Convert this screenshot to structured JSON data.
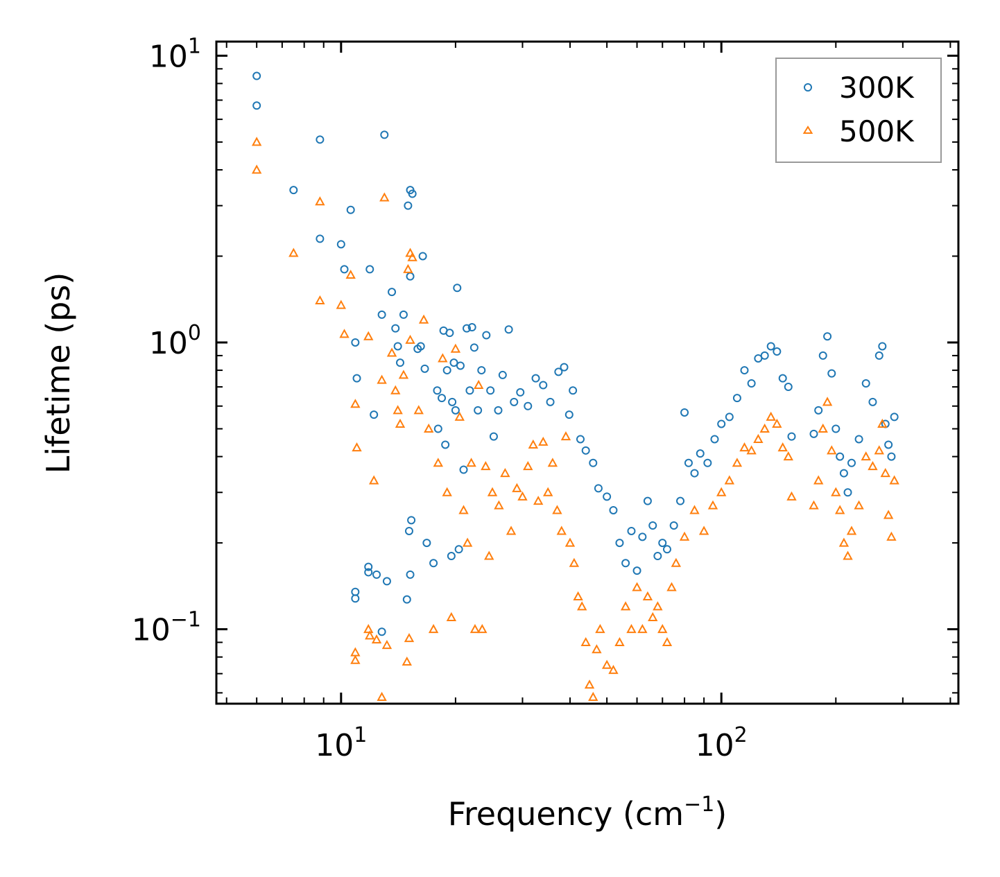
{
  "chart_data": {
    "type": "scatter",
    "title": "",
    "xlabel": {
      "text": "Frequency (cm",
      "sup": "−1",
      "suffix": ")"
    },
    "ylabel": "Lifetime (ps)",
    "xscale": "log",
    "yscale": "log",
    "xlim": [
      4.7,
      420
    ],
    "ylim": [
      0.055,
      11.2
    ],
    "grid": false,
    "legend_position": "top-right",
    "x_ticks": [
      {
        "value": 10,
        "base": "10",
        "exp": "1"
      },
      {
        "value": 100,
        "base": "10",
        "exp": "2"
      }
    ],
    "y_ticks": [
      {
        "value": 0.1,
        "base": "10",
        "exp": "−1"
      },
      {
        "value": 1,
        "base": "10",
        "exp": "0"
      },
      {
        "value": 10,
        "base": "10",
        "exp": "1"
      }
    ],
    "series": [
      {
        "name": "300K",
        "marker": "circle",
        "color": "#1f77b4",
        "points": [
          [
            6.0,
            8.5
          ],
          [
            6.0,
            6.7
          ],
          [
            7.5,
            3.4
          ],
          [
            8.8,
            5.1
          ],
          [
            8.8,
            2.3
          ],
          [
            10.0,
            2.2
          ],
          [
            10.2,
            1.8
          ],
          [
            10.6,
            2.9
          ],
          [
            10.9,
            1.0
          ],
          [
            11.0,
            0.75
          ],
          [
            10.9,
            0.135
          ],
          [
            10.9,
            0.128
          ],
          [
            11.9,
            1.8
          ],
          [
            12.2,
            0.56
          ],
          [
            11.8,
            0.165
          ],
          [
            11.8,
            0.158
          ],
          [
            12.4,
            0.155
          ],
          [
            12.8,
            1.25
          ],
          [
            12.8,
            0.098
          ],
          [
            13.0,
            5.3
          ],
          [
            13.2,
            0.147
          ],
          [
            13.6,
            1.5
          ],
          [
            13.9,
            1.12
          ],
          [
            14.1,
            0.97
          ],
          [
            14.3,
            0.85
          ],
          [
            14.6,
            1.25
          ],
          [
            14.9,
            0.127
          ],
          [
            15.0,
            3.0
          ],
          [
            15.2,
            3.4
          ],
          [
            15.4,
            3.3
          ],
          [
            15.2,
            1.7
          ],
          [
            15.1,
            0.22
          ],
          [
            15.2,
            0.155
          ],
          [
            15.3,
            0.24
          ],
          [
            15.9,
            0.95
          ],
          [
            16.2,
            0.97
          ],
          [
            16.4,
            2.0
          ],
          [
            16.6,
            0.81
          ],
          [
            16.8,
            0.2
          ],
          [
            17.5,
            0.17
          ],
          [
            17.9,
            0.68
          ],
          [
            18.0,
            0.5
          ],
          [
            18.4,
            0.64
          ],
          [
            18.6,
            1.1
          ],
          [
            18.8,
            0.44
          ],
          [
            19.0,
            0.8
          ],
          [
            19.3,
            1.08
          ],
          [
            19.6,
            0.62
          ],
          [
            19.5,
            0.18
          ],
          [
            19.8,
            0.85
          ],
          [
            20.0,
            0.58
          ],
          [
            20.2,
            1.55
          ],
          [
            20.4,
            0.19
          ],
          [
            20.6,
            0.83
          ],
          [
            21.0,
            0.36
          ],
          [
            21.4,
            1.12
          ],
          [
            21.8,
            0.68
          ],
          [
            22.1,
            1.13
          ],
          [
            22.4,
            0.96
          ],
          [
            22.9,
            0.58
          ],
          [
            23.4,
            0.8
          ],
          [
            24.1,
            1.06
          ],
          [
            24.7,
            0.68
          ],
          [
            25.2,
            0.47
          ],
          [
            25.9,
            0.58
          ],
          [
            26.6,
            0.77
          ],
          [
            27.6,
            1.11
          ],
          [
            28.5,
            0.62
          ],
          [
            29.6,
            0.67
          ],
          [
            31.0,
            0.6
          ],
          [
            32.5,
            0.75
          ],
          [
            34.0,
            0.71
          ],
          [
            35.5,
            0.62
          ],
          [
            37.3,
            0.79
          ],
          [
            38.6,
            0.82
          ],
          [
            39.8,
            0.56
          ],
          [
            40.7,
            0.68
          ],
          [
            42.6,
            0.46
          ],
          [
            44.0,
            0.42
          ],
          [
            46.0,
            0.38
          ],
          [
            47.5,
            0.31
          ],
          [
            50.0,
            0.29
          ],
          [
            52.0,
            0.26
          ],
          [
            54.0,
            0.2
          ],
          [
            56.0,
            0.17
          ],
          [
            58.0,
            0.22
          ],
          [
            60.0,
            0.16
          ],
          [
            62.0,
            0.21
          ],
          [
            64.0,
            0.28
          ],
          [
            66.0,
            0.23
          ],
          [
            68.0,
            0.18
          ],
          [
            70.0,
            0.2
          ],
          [
            72.0,
            0.19
          ],
          [
            75.0,
            0.23
          ],
          [
            78.0,
            0.28
          ],
          [
            80.0,
            0.57
          ],
          [
            82.0,
            0.38
          ],
          [
            85.0,
            0.35
          ],
          [
            88.0,
            0.41
          ],
          [
            92.0,
            0.38
          ],
          [
            96.0,
            0.46
          ],
          [
            100.0,
            0.52
          ],
          [
            105.0,
            0.55
          ],
          [
            110.0,
            0.64
          ],
          [
            115.0,
            0.8
          ],
          [
            120.0,
            0.72
          ],
          [
            125.0,
            0.88
          ],
          [
            130.0,
            0.9
          ],
          [
            135.0,
            0.97
          ],
          [
            140.0,
            0.93
          ],
          [
            145.0,
            0.75
          ],
          [
            150.0,
            0.7
          ],
          [
            153.0,
            0.47
          ],
          [
            175.0,
            0.48
          ],
          [
            180.0,
            0.58
          ],
          [
            185.0,
            0.9
          ],
          [
            190.0,
            1.05
          ],
          [
            195.0,
            0.78
          ],
          [
            200.0,
            0.5
          ],
          [
            205.0,
            0.4
          ],
          [
            210.0,
            0.35
          ],
          [
            215.0,
            0.3
          ],
          [
            220.0,
            0.38
          ],
          [
            230.0,
            0.46
          ],
          [
            240.0,
            0.72
          ],
          [
            250.0,
            0.62
          ],
          [
            260.0,
            0.9
          ],
          [
            265.0,
            0.97
          ],
          [
            270.0,
            0.52
          ],
          [
            275.0,
            0.44
          ],
          [
            280.0,
            0.4
          ],
          [
            285.0,
            0.55
          ]
        ]
      },
      {
        "name": "500K",
        "marker": "triangle",
        "color": "#ff7f0e",
        "points": [
          [
            6.0,
            5.0
          ],
          [
            6.0,
            4.0
          ],
          [
            7.5,
            2.05
          ],
          [
            8.8,
            3.1
          ],
          [
            8.8,
            1.4
          ],
          [
            10.0,
            1.35
          ],
          [
            10.2,
            1.07
          ],
          [
            10.6,
            1.72
          ],
          [
            10.9,
            0.61
          ],
          [
            11.0,
            0.43
          ],
          [
            10.9,
            0.083
          ],
          [
            10.9,
            0.078
          ],
          [
            11.8,
            1.05
          ],
          [
            11.8,
            0.1
          ],
          [
            11.9,
            0.095
          ],
          [
            12.2,
            0.33
          ],
          [
            12.4,
            0.092
          ],
          [
            12.8,
            0.74
          ],
          [
            12.8,
            0.058
          ],
          [
            13.0,
            3.2
          ],
          [
            13.2,
            0.088
          ],
          [
            13.6,
            0.92
          ],
          [
            13.9,
            0.68
          ],
          [
            14.1,
            0.58
          ],
          [
            14.3,
            0.52
          ],
          [
            14.6,
            0.77
          ],
          [
            14.9,
            0.077
          ],
          [
            15.0,
            1.8
          ],
          [
            15.2,
            2.05
          ],
          [
            15.4,
            1.98
          ],
          [
            15.2,
            1.02
          ],
          [
            15.1,
            0.093
          ],
          [
            16.0,
            0.58
          ],
          [
            16.5,
            1.2
          ],
          [
            17.0,
            0.5
          ],
          [
            17.5,
            0.1
          ],
          [
            18.0,
            0.38
          ],
          [
            18.5,
            0.88
          ],
          [
            19.0,
            0.3
          ],
          [
            19.5,
            0.11
          ],
          [
            20.0,
            0.95
          ],
          [
            20.5,
            0.55
          ],
          [
            21.0,
            0.26
          ],
          [
            21.5,
            0.2
          ],
          [
            22.0,
            0.38
          ],
          [
            22.5,
            0.1
          ],
          [
            23.0,
            0.71
          ],
          [
            23.5,
            0.1
          ],
          [
            24.0,
            0.37
          ],
          [
            24.5,
            0.18
          ],
          [
            25.0,
            0.3
          ],
          [
            26.0,
            0.27
          ],
          [
            27.0,
            0.35
          ],
          [
            28.0,
            0.22
          ],
          [
            29.0,
            0.31
          ],
          [
            30.0,
            0.29
          ],
          [
            31.0,
            0.37
          ],
          [
            32.0,
            0.44
          ],
          [
            33.0,
            0.28
          ],
          [
            34.0,
            0.45
          ],
          [
            35.0,
            0.3
          ],
          [
            36.0,
            0.38
          ],
          [
            37.0,
            0.26
          ],
          [
            38.0,
            0.22
          ],
          [
            39.0,
            0.47
          ],
          [
            40.0,
            0.2
          ],
          [
            41.0,
            0.17
          ],
          [
            42.0,
            0.13
          ],
          [
            43.0,
            0.12
          ],
          [
            44.0,
            0.09
          ],
          [
            45.0,
            0.064
          ],
          [
            46.0,
            0.058
          ],
          [
            47.0,
            0.085
          ],
          [
            48.0,
            0.1
          ],
          [
            50.0,
            0.075
          ],
          [
            52.0,
            0.072
          ],
          [
            54.0,
            0.09
          ],
          [
            56.0,
            0.12
          ],
          [
            58.0,
            0.1
          ],
          [
            60.0,
            0.14
          ],
          [
            62.0,
            0.1
          ],
          [
            64.0,
            0.13
          ],
          [
            66.0,
            0.11
          ],
          [
            68.0,
            0.12
          ],
          [
            70.0,
            0.1
          ],
          [
            72.0,
            0.09
          ],
          [
            74.0,
            0.14
          ],
          [
            76.0,
            0.17
          ],
          [
            80.0,
            0.21
          ],
          [
            85.0,
            0.26
          ],
          [
            90.0,
            0.22
          ],
          [
            95.0,
            0.27
          ],
          [
            100.0,
            0.3
          ],
          [
            105.0,
            0.33
          ],
          [
            110.0,
            0.38
          ],
          [
            115.0,
            0.43
          ],
          [
            120.0,
            0.42
          ],
          [
            125.0,
            0.46
          ],
          [
            130.0,
            0.5
          ],
          [
            135.0,
            0.55
          ],
          [
            140.0,
            0.52
          ],
          [
            145.0,
            0.43
          ],
          [
            150.0,
            0.4
          ],
          [
            153.0,
            0.29
          ],
          [
            175.0,
            0.27
          ],
          [
            180.0,
            0.33
          ],
          [
            185.0,
            0.5
          ],
          [
            190.0,
            0.62
          ],
          [
            195.0,
            0.42
          ],
          [
            200.0,
            0.3
          ],
          [
            205.0,
            0.26
          ],
          [
            210.0,
            0.2
          ],
          [
            215.0,
            0.18
          ],
          [
            220.0,
            0.22
          ],
          [
            230.0,
            0.27
          ],
          [
            240.0,
            0.4
          ],
          [
            250.0,
            0.37
          ],
          [
            260.0,
            0.42
          ],
          [
            265.0,
            0.52
          ],
          [
            270.0,
            0.35
          ],
          [
            275.0,
            0.25
          ],
          [
            280.0,
            0.21
          ],
          [
            285.0,
            0.33
          ]
        ]
      }
    ]
  }
}
